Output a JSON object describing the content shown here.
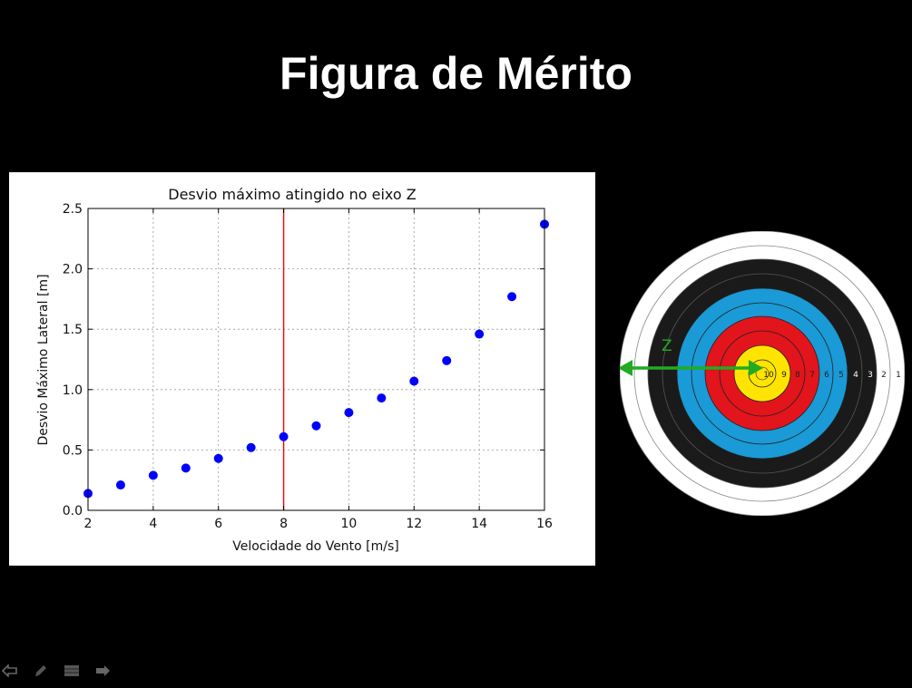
{
  "slide": {
    "title": "Figura de Mérito"
  },
  "chart_data": {
    "type": "scatter",
    "title": "Desvio máximo atingido no eixo Z",
    "xlabel": "Velocidade do Vento [m/s]",
    "ylabel": "Desvio Máximo Lateral [m]",
    "xlim": [
      2,
      16
    ],
    "ylim": [
      0.0,
      2.5
    ],
    "xticks": [
      2,
      4,
      6,
      8,
      10,
      12,
      14,
      16
    ],
    "yticks": [
      0.0,
      0.5,
      1.0,
      1.5,
      2.0,
      2.5
    ],
    "xtick_labels": [
      "2",
      "4",
      "6",
      "8",
      "10",
      "12",
      "14",
      "16"
    ],
    "ytick_labels": [
      "0.0",
      "0.5",
      "1.0",
      "1.5",
      "2.0",
      "2.5"
    ],
    "grid": true,
    "x": [
      2,
      3,
      4,
      5,
      6,
      7,
      8,
      9,
      10,
      11,
      12,
      13,
      14,
      15,
      16
    ],
    "y": [
      0.14,
      0.21,
      0.29,
      0.35,
      0.43,
      0.52,
      0.61,
      0.7,
      0.81,
      0.93,
      1.07,
      1.24,
      1.46,
      1.77,
      2.37
    ],
    "point_color": "#0000ff",
    "vline": {
      "x": 8,
      "color": "#ff0000"
    }
  },
  "target": {
    "axis_label": "Z",
    "axis_color": "#22aa22",
    "ring_labels": [
      "10",
      "9",
      "8",
      "7",
      "6",
      "5",
      "4",
      "3",
      "2",
      "1"
    ],
    "colors": {
      "white": "#ffffff",
      "black": "#1a1a1a",
      "blue": "#1a9ad6",
      "red": "#e2141c",
      "gold": "#ffe400"
    }
  },
  "nav": {
    "icons": [
      "back-arrow-icon",
      "pen-icon",
      "menu-icon",
      "forward-arrow-icon"
    ]
  }
}
